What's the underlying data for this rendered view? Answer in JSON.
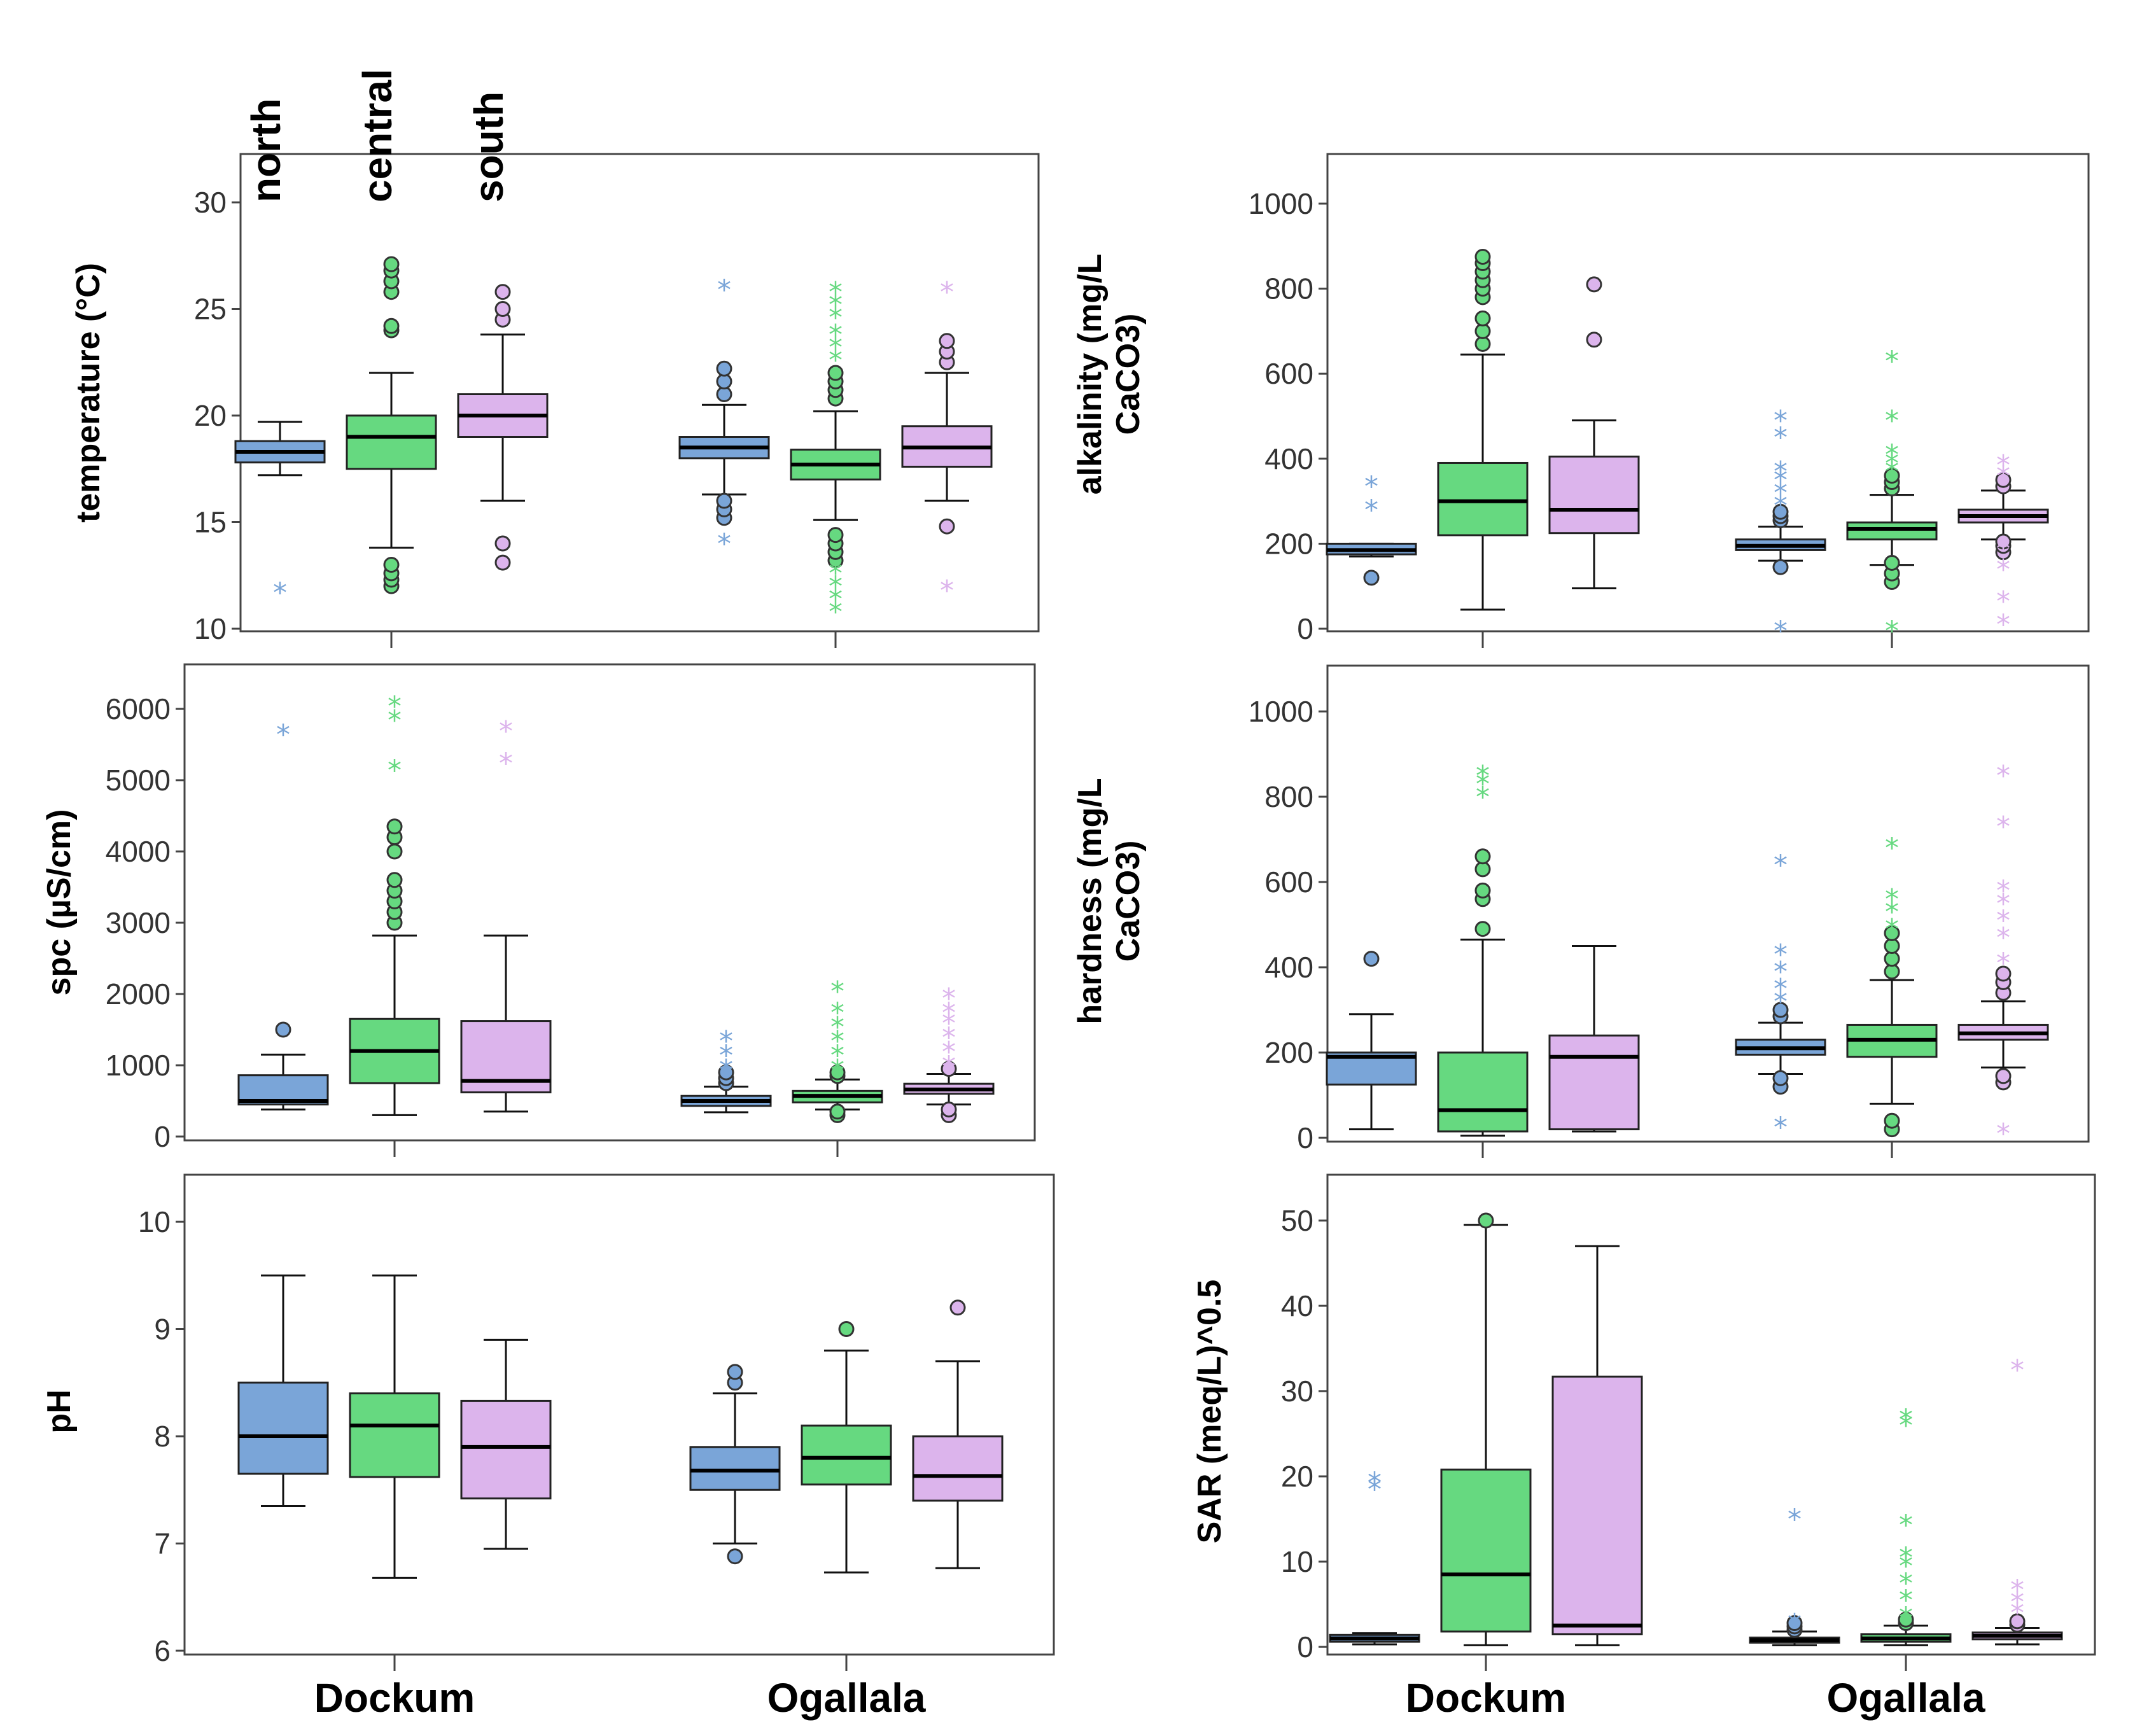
{
  "colors": {
    "north": "#7aa5d8",
    "central": "#66d980",
    "south": "#dcb4ec"
  },
  "regions": [
    "north",
    "central",
    "south"
  ],
  "groups": [
    "Dockum",
    "Ogallala"
  ],
  "chart_data": [
    {
      "type": "boxplot",
      "id": "temperature",
      "ylabel": [
        "temperature (°C)"
      ],
      "ylim": [
        10,
        32
      ],
      "ticks": [
        10,
        15,
        20,
        25,
        30
      ],
      "tick_labels": [
        "10",
        "15",
        "20",
        "25",
        "30"
      ],
      "categories": [
        "Dockum",
        "Ogallala"
      ],
      "series": [
        {
          "group": "Dockum",
          "region": "north",
          "min": 17.2,
          "q1": 17.8,
          "median": 18.3,
          "q3": 18.8,
          "max": 19.7,
          "outliers": [],
          "extremes": [
            11.9
          ]
        },
        {
          "group": "Dockum",
          "region": "central",
          "min": 13.8,
          "q1": 17.5,
          "median": 19.0,
          "q3": 20.0,
          "max": 22.0,
          "outliers": [
            12.0,
            12.3,
            12.6,
            13.0,
            24.0,
            24.2,
            25.8,
            26.3,
            26.8,
            27.1
          ],
          "extremes": []
        },
        {
          "group": "Dockum",
          "region": "south",
          "min": 16.0,
          "q1": 19.0,
          "median": 20.0,
          "q3": 21.0,
          "max": 23.8,
          "outliers": [
            13.1,
            14.0,
            24.5,
            25.0,
            25.8
          ],
          "extremes": []
        },
        {
          "group": "Ogallala",
          "region": "north",
          "min": 16.3,
          "q1": 18.0,
          "median": 18.5,
          "q3": 19.0,
          "max": 20.5,
          "outliers": [
            15.2,
            15.6,
            16.0,
            21.0,
            21.6,
            22.2
          ],
          "extremes": [
            14.2,
            26.1
          ]
        },
        {
          "group": "Ogallala",
          "region": "central",
          "min": 15.1,
          "q1": 17.0,
          "median": 17.7,
          "q3": 18.4,
          "max": 20.2,
          "outliers": [
            13.2,
            13.6,
            14.0,
            14.4,
            20.8,
            21.2,
            21.6,
            22.0
          ],
          "extremes": [
            11.0,
            11.6,
            12.2,
            12.8,
            22.8,
            23.4,
            24.0,
            24.8,
            25.4,
            26.0
          ]
        },
        {
          "group": "Ogallala",
          "region": "south",
          "min": 16.0,
          "q1": 17.6,
          "median": 18.5,
          "q3": 19.5,
          "max": 22.0,
          "outliers": [
            14.8,
            22.5,
            23.0,
            23.5
          ],
          "extremes": [
            12.0,
            26.0
          ]
        }
      ]
    },
    {
      "type": "boxplot",
      "id": "alkalinity",
      "ylabel": [
        "alkalinity (mg/L",
        "CaCO3)"
      ],
      "ylim": [
        0,
        1100
      ],
      "ticks": [
        0,
        200,
        400,
        600,
        800,
        1000
      ],
      "tick_labels": [
        "0",
        "200",
        "400",
        "600",
        "800",
        "1000"
      ],
      "categories": [
        "Dockum",
        "Ogallala"
      ],
      "series": [
        {
          "group": "Dockum",
          "region": "north",
          "min": 170,
          "q1": 175,
          "median": 185,
          "q3": 200,
          "max": 200,
          "outliers": [
            120
          ],
          "extremes": [
            290,
            345
          ]
        },
        {
          "group": "Dockum",
          "region": "central",
          "min": 45,
          "q1": 220,
          "median": 300,
          "q3": 390,
          "max": 645,
          "outliers": [
            670,
            700,
            730,
            780,
            800,
            820,
            840,
            860,
            875
          ],
          "extremes": []
        },
        {
          "group": "Dockum",
          "region": "south",
          "min": 95,
          "q1": 225,
          "median": 280,
          "q3": 405,
          "max": 490,
          "outliers": [
            680,
            810
          ],
          "extremes": []
        },
        {
          "group": "Ogallala",
          "region": "north",
          "min": 160,
          "q1": 185,
          "median": 195,
          "q3": 210,
          "max": 240,
          "outliers": [
            145,
            255,
            265,
            275
          ],
          "extremes": [
            5,
            300,
            330,
            360,
            380,
            460,
            500
          ]
        },
        {
          "group": "Ogallala",
          "region": "central",
          "min": 150,
          "q1": 210,
          "median": 235,
          "q3": 250,
          "max": 315,
          "outliers": [
            110,
            130,
            155,
            330,
            345,
            360
          ],
          "extremes": [
            5,
            380,
            400,
            420,
            500,
            640
          ]
        },
        {
          "group": "Ogallala",
          "region": "south",
          "min": 210,
          "q1": 250,
          "median": 265,
          "q3": 280,
          "max": 325,
          "outliers": [
            180,
            195,
            205,
            335,
            350
          ],
          "extremes": [
            20,
            75,
            150,
            200,
            370,
            395
          ]
        }
      ]
    },
    {
      "type": "boxplot",
      "id": "spc",
      "ylabel": [
        "spc (µS/cm)"
      ],
      "ylim": [
        0,
        6500
      ],
      "ticks": [
        0,
        1000,
        2000,
        3000,
        4000,
        5000,
        6000
      ],
      "tick_labels": [
        "0",
        "1000",
        "2000",
        "3000",
        "4000",
        "5000",
        "6000"
      ],
      "categories": [
        "Dockum",
        "Ogallala"
      ],
      "series": [
        {
          "group": "Dockum",
          "region": "north",
          "min": 380,
          "q1": 450,
          "median": 500,
          "q3": 860,
          "max": 1150,
          "outliers": [
            1500
          ],
          "extremes": [
            5700
          ]
        },
        {
          "group": "Dockum",
          "region": "central",
          "min": 300,
          "q1": 750,
          "median": 1200,
          "q3": 1650,
          "max": 2820,
          "outliers": [
            3000,
            3150,
            3300,
            3450,
            3600,
            4000,
            4200,
            4350
          ],
          "extremes": [
            5200,
            5900,
            6100
          ]
        },
        {
          "group": "Dockum",
          "region": "south",
          "min": 350,
          "q1": 620,
          "median": 780,
          "q3": 1620,
          "max": 2820,
          "outliers": [],
          "extremes": [
            5300,
            5750
          ]
        },
        {
          "group": "Ogallala",
          "region": "north",
          "min": 340,
          "q1": 430,
          "median": 500,
          "q3": 570,
          "max": 700,
          "outliers": [
            750,
            820,
            900
          ],
          "extremes": [
            1000,
            1200,
            1400
          ]
        },
        {
          "group": "Ogallala",
          "region": "central",
          "min": 380,
          "q1": 480,
          "median": 570,
          "q3": 640,
          "max": 800,
          "outliers": [
            300,
            350,
            850,
            900
          ],
          "extremes": [
            1000,
            1200,
            1400,
            1600,
            1800,
            2100
          ]
        },
        {
          "group": "Ogallala",
          "region": "south",
          "min": 450,
          "q1": 600,
          "median": 660,
          "q3": 740,
          "max": 880,
          "outliers": [
            300,
            380,
            950
          ],
          "extremes": [
            1050,
            1250,
            1450,
            1650,
            1800,
            2000
          ]
        }
      ]
    },
    {
      "type": "boxplot",
      "id": "hardness",
      "ylabel": [
        "hardness (mg/L",
        "CaCO3)"
      ],
      "ylim": [
        0,
        1100
      ],
      "ticks": [
        0,
        200,
        400,
        600,
        800,
        1000
      ],
      "tick_labels": [
        "0",
        "200",
        "400",
        "600",
        "800",
        "1000"
      ],
      "categories": [
        "Dockum",
        "Ogallala"
      ],
      "series": [
        {
          "group": "Dockum",
          "region": "north",
          "min": 20,
          "q1": 125,
          "median": 190,
          "q3": 200,
          "max": 290,
          "outliers": [
            420
          ],
          "extremes": []
        },
        {
          "group": "Dockum",
          "region": "central",
          "min": 5,
          "q1": 15,
          "median": 65,
          "q3": 200,
          "max": 465,
          "outliers": [
            490,
            560,
            580,
            630,
            660
          ],
          "extremes": [
            810,
            840,
            860
          ]
        },
        {
          "group": "Dockum",
          "region": "south",
          "min": 15,
          "q1": 20,
          "median": 190,
          "q3": 240,
          "max": 450,
          "outliers": [],
          "extremes": []
        },
        {
          "group": "Ogallala",
          "region": "north",
          "min": 150,
          "q1": 195,
          "median": 210,
          "q3": 230,
          "max": 270,
          "outliers": [
            120,
            140,
            285,
            300
          ],
          "extremes": [
            35,
            330,
            360,
            400,
            440,
            650
          ]
        },
        {
          "group": "Ogallala",
          "region": "central",
          "min": 80,
          "q1": 190,
          "median": 230,
          "q3": 265,
          "max": 370,
          "outliers": [
            20,
            40,
            390,
            420,
            450,
            480
          ],
          "extremes": [
            500,
            540,
            570,
            690
          ]
        },
        {
          "group": "Ogallala",
          "region": "south",
          "min": 165,
          "q1": 230,
          "median": 245,
          "q3": 265,
          "max": 320,
          "outliers": [
            130,
            145,
            340,
            365,
            385
          ],
          "extremes": [
            20,
            420,
            480,
            520,
            560,
            590,
            740,
            860
          ]
        }
      ]
    },
    {
      "type": "boxplot",
      "id": "ph",
      "ylabel": [
        "pH"
      ],
      "ylim": [
        6,
        10.45
      ],
      "ticks": [
        6,
        7,
        8,
        9,
        10
      ],
      "tick_labels": [
        "6",
        "7",
        "8",
        "9",
        "10"
      ],
      "categories": [
        "Dockum",
        "Ogallala"
      ],
      "series": [
        {
          "group": "Dockum",
          "region": "north",
          "min": 7.35,
          "q1": 7.65,
          "median": 8.0,
          "q3": 8.5,
          "max": 9.5,
          "outliers": [],
          "extremes": []
        },
        {
          "group": "Dockum",
          "region": "central",
          "min": 6.68,
          "q1": 7.62,
          "median": 8.1,
          "q3": 8.4,
          "max": 9.5,
          "outliers": [],
          "extremes": []
        },
        {
          "group": "Dockum",
          "region": "south",
          "min": 6.95,
          "q1": 7.42,
          "median": 7.9,
          "q3": 8.33,
          "max": 8.9,
          "outliers": [],
          "extremes": []
        },
        {
          "group": "Ogallala",
          "region": "north",
          "min": 7.0,
          "q1": 7.5,
          "median": 7.68,
          "q3": 7.9,
          "max": 8.4,
          "outliers": [
            6.88,
            8.5,
            8.6
          ],
          "extremes": []
        },
        {
          "group": "Ogallala",
          "region": "central",
          "min": 6.73,
          "q1": 7.55,
          "median": 7.8,
          "q3": 8.1,
          "max": 8.8,
          "outliers": [
            9.0
          ],
          "extremes": []
        },
        {
          "group": "Ogallala",
          "region": "south",
          "min": 6.77,
          "q1": 7.4,
          "median": 7.63,
          "q3": 8.0,
          "max": 8.7,
          "outliers": [
            9.2
          ],
          "extremes": []
        }
      ]
    },
    {
      "type": "boxplot",
      "id": "sar",
      "ylabel": [
        "SAR (meq/L)^0.5"
      ],
      "ylim": [
        -0.5,
        55.5
      ],
      "ticks": [
        0,
        10,
        20,
        30,
        40,
        50
      ],
      "tick_labels": [
        "0",
        "10",
        "20",
        "30",
        "40",
        "50"
      ],
      "categories": [
        "Dockum",
        "Ogallala"
      ],
      "series": [
        {
          "group": "Dockum",
          "region": "north",
          "min": 0.3,
          "q1": 0.6,
          "median": 1.0,
          "q3": 1.4,
          "max": 1.6,
          "outliers": [],
          "extremes": [
            19.0,
            19.8
          ]
        },
        {
          "group": "Dockum",
          "region": "central",
          "min": 0.2,
          "q1": 1.8,
          "median": 8.5,
          "q3": 20.8,
          "max": 49.5,
          "outliers": [
            50.0
          ],
          "extremes": []
        },
        {
          "group": "Dockum",
          "region": "south",
          "min": 0.2,
          "q1": 1.5,
          "median": 2.5,
          "q3": 31.7,
          "max": 47.0,
          "outliers": [],
          "extremes": []
        },
        {
          "group": "Ogallala",
          "region": "north",
          "min": 0.2,
          "q1": 0.5,
          "median": 0.8,
          "q3": 1.1,
          "max": 1.8,
          "outliers": [
            2.0,
            2.4,
            2.8
          ],
          "extremes": [
            3.2,
            15.5
          ]
        },
        {
          "group": "Ogallala",
          "region": "central",
          "min": 0.2,
          "q1": 0.6,
          "median": 1.0,
          "q3": 1.5,
          "max": 2.5,
          "outliers": [
            2.8,
            3.2
          ],
          "extremes": [
            4,
            6,
            8,
            10,
            11,
            14.8,
            26.5,
            27.2
          ]
        },
        {
          "group": "Ogallala",
          "region": "south",
          "min": 0.3,
          "q1": 0.9,
          "median": 1.3,
          "q3": 1.7,
          "max": 2.2,
          "outliers": [
            2.6,
            3.0
          ],
          "extremes": [
            4.5,
            5.8,
            7.2,
            33.0
          ]
        }
      ]
    }
  ]
}
